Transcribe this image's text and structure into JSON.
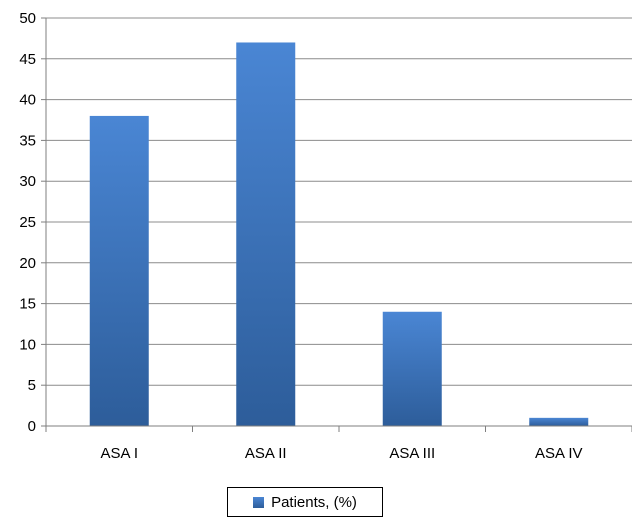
{
  "chart_data": {
    "type": "bar",
    "categories": [
      "ASA I",
      "ASA II",
      "ASA III",
      "ASA IV"
    ],
    "series": [
      {
        "name": "Patients, (%)",
        "values": [
          38,
          47,
          14,
          1
        ]
      }
    ],
    "ylim": [
      0,
      50
    ],
    "yticks": [
      0,
      5,
      10,
      15,
      20,
      25,
      30,
      35,
      40,
      45,
      50
    ],
    "grid": true,
    "legend_position": "bottom",
    "colors": {
      "bar_top": "#4a86d4",
      "bar_bottom": "#2d5d9a",
      "grid": "#8c8c8c",
      "axis": "#7f7f7f"
    }
  }
}
